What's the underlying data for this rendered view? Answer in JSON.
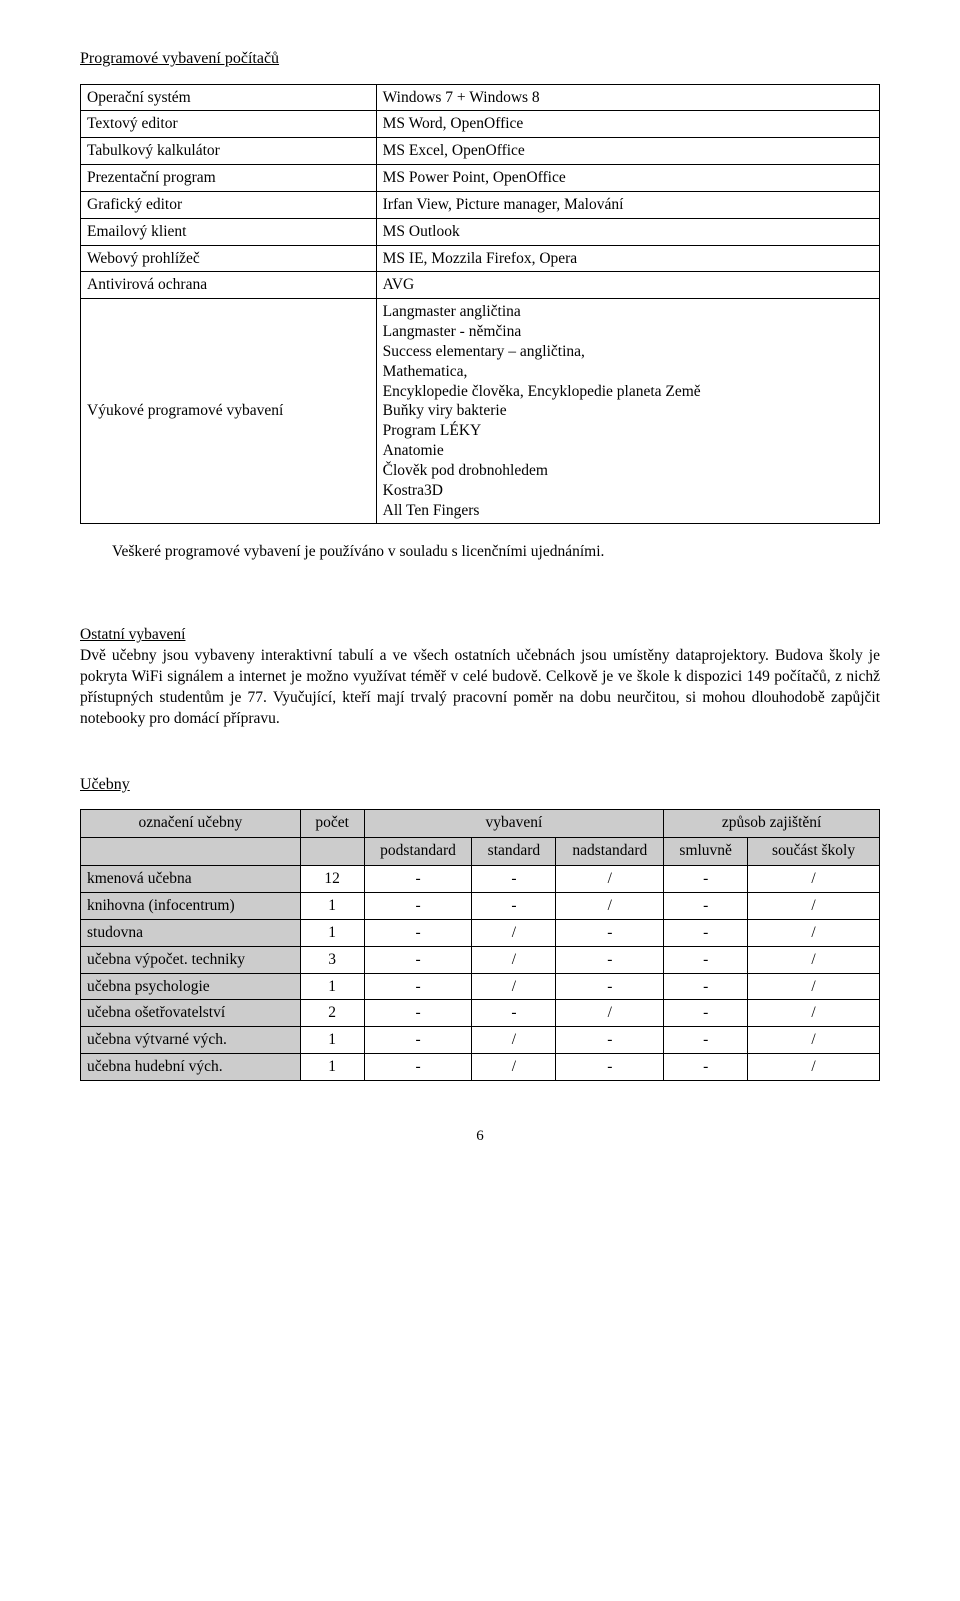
{
  "page": {
    "section1_title": "Programové vybavení počítačů",
    "section2_title": "Učebny",
    "ostatni_title": "Ostatní vybavení",
    "page_number": "6"
  },
  "table1": {
    "rows": [
      {
        "label": "Operační systém",
        "value": "Windows 7 + Windows 8"
      },
      {
        "label": "Textový editor",
        "value": "MS Word, OpenOffice"
      },
      {
        "label": "Tabulkový kalkulátor",
        "value": "MS Excel, OpenOffice"
      },
      {
        "label": "Prezentační program",
        "value": "MS Power Point, OpenOffice"
      },
      {
        "label": "Grafický editor",
        "value": "Irfan View, Picture manager, Malování"
      },
      {
        "label": "Emailový klient",
        "value": "MS Outlook"
      },
      {
        "label": "Webový prohlížeč",
        "value": "MS IE, Mozzila Firefox, Opera"
      },
      {
        "label": "Antivirová ochrana",
        "value": "AVG"
      },
      {
        "label": "Výukové programové vybavení",
        "value": "Langmaster angličtina\nLangmaster - němčina\nSuccess elementary – angličtina,\nMathematica,\nEncyklopedie člověka, Encyklopedie planeta Země\nBuňky viry bakterie\nProgram LÉKY\nAnatomie\nČlověk pod drobnohledem\nKostra3D\nAll Ten Fingers"
      }
    ]
  },
  "paragraphs": {
    "p1": "Veškeré programové vybavení je používáno v souladu s licenčními ujednáními.",
    "p2": "Dvě učebny jsou vybaveny interaktivní tabulí a ve všech ostatních  učebnách jsou umístěny dataprojektory. Budova školy je pokryta WiFi signálem a internet je možno využívat téměř v celé budově. Celkově je ve škole k dispozici 149 počítačů, z nichž přístupných studentům je 77. Vyučující, kteří mají trvalý pracovní poměr na dobu neurčitou, si mohou dlouhodobě zapůjčit notebooky pro domácí přípravu."
  },
  "table2": {
    "header_main": [
      "označení učebny",
      "počet",
      "vybavení",
      "způsob zajištění"
    ],
    "header_sub": [
      "podstandard",
      "standard",
      "nadstandard",
      "smluvně",
      "součást  školy"
    ],
    "colwidths_pct": [
      27.5,
      8,
      13.5,
      10.5,
      13.5,
      10.5,
      16.5
    ],
    "rows": [
      {
        "name": "kmenová učebna",
        "count": "12",
        "v1": "-",
        "v2": "-",
        "v3": "/",
        "z1": "-",
        "z2": "/"
      },
      {
        "name": "knihovna (infocentrum)",
        "count": "1",
        "v1": "-",
        "v2": "-",
        "v3": "/",
        "z1": "-",
        "z2": "/"
      },
      {
        "name": "studovna",
        "count": "1",
        "v1": "-",
        "v2": "/",
        "v3": "-",
        "z1": "-",
        "z2": "/"
      },
      {
        "name": "učebna výpočet. techniky",
        "count": "3",
        "v1": "-",
        "v2": "/",
        "v3": "-",
        "z1": "-",
        "z2": "/"
      },
      {
        "name": "učebna psychologie",
        "count": "1",
        "v1": "-",
        "v2": "/",
        "v3": "-",
        "z1": "-",
        "z2": "/"
      },
      {
        "name": "učebna ošetřovatelství",
        "count": "2",
        "v1": "-",
        "v2": "-",
        "v3": "/",
        "z1": "-",
        "z2": "/"
      },
      {
        "name": "učebna výtvarné vých.",
        "count": "1",
        "v1": "-",
        "v2": "/",
        "v3": "-",
        "z1": "-",
        "z2": "/"
      },
      {
        "name": "učebna hudební vých.",
        "count": "1",
        "v1": "-",
        "v2": "/",
        "v3": "-",
        "z1": "-",
        "z2": "/"
      }
    ]
  }
}
